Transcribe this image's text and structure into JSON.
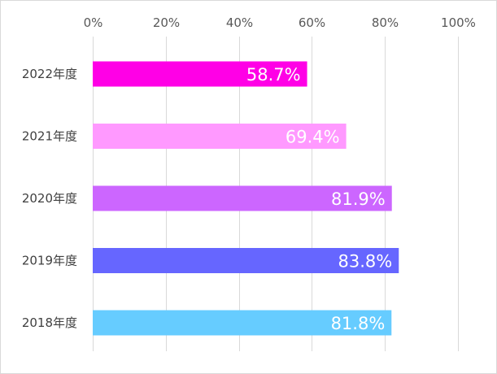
{
  "chart_data": {
    "type": "bar",
    "orientation": "horizontal",
    "categories": [
      "2022年度",
      "2021年度",
      "2020年度",
      "2019年度",
      "2018年度"
    ],
    "values": [
      58.7,
      69.4,
      81.9,
      83.8,
      81.8
    ],
    "data_labels": [
      "58.7%",
      "69.4%",
      "81.9%",
      "83.8%",
      "81.8%"
    ],
    "bar_colors": [
      "#FF00E6",
      "#FF99FF",
      "#CC66FF",
      "#6666FF",
      "#66CCFF"
    ],
    "xlim": [
      0,
      100
    ],
    "x_ticks": [
      0,
      20,
      40,
      60,
      80,
      100
    ],
    "x_tick_labels": [
      "0%",
      "20%",
      "40%",
      "60%",
      "80%",
      "100%"
    ],
    "x_axis_position": "top",
    "grid": true,
    "legend": "none",
    "title": "",
    "xlabel": "",
    "ylabel": ""
  }
}
